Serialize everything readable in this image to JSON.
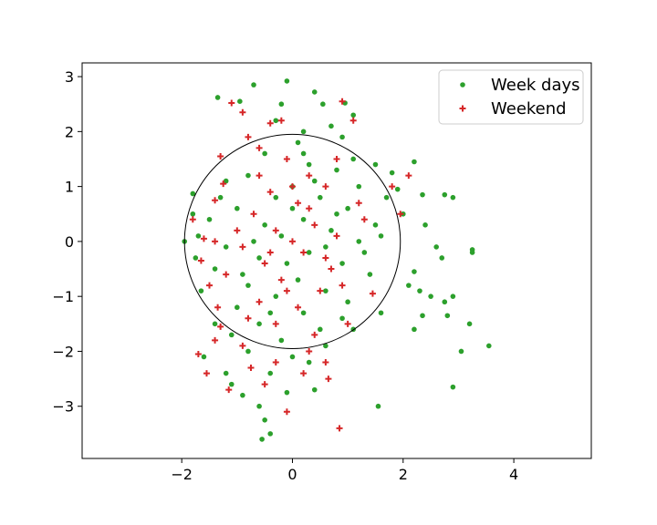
{
  "chart_data": {
    "type": "scatter",
    "title": "",
    "xlabel": "",
    "ylabel": "",
    "xlim": [
      -3.8,
      5.4
    ],
    "ylim": [
      -3.95,
      3.25
    ],
    "xticks": [
      -2,
      0,
      2,
      4
    ],
    "yticks": [
      -3,
      -2,
      -1,
      0,
      1,
      2,
      3
    ],
    "grid": false,
    "legend_placement": "top-right",
    "circle": {
      "center": [
        0,
        0
      ],
      "radius": 1.95,
      "color": "#000000"
    },
    "series": [
      {
        "name": "Week days",
        "marker": "dot",
        "color": "#2ca02c",
        "points": [
          [
            -0.1,
            2.92
          ],
          [
            0.4,
            2.72
          ],
          [
            -0.7,
            2.85
          ],
          [
            -1.35,
            2.62
          ],
          [
            -0.95,
            2.55
          ],
          [
            0.95,
            2.52
          ],
          [
            1.1,
            2.3
          ],
          [
            0.55,
            2.5
          ],
          [
            -1.8,
            0.87
          ],
          [
            -1.95,
            0.0
          ],
          [
            -1.8,
            0.5
          ],
          [
            -1.75,
            -0.3
          ],
          [
            -1.65,
            -0.9
          ],
          [
            -1.4,
            -1.5
          ],
          [
            -1.2,
            -2.4
          ],
          [
            -1.1,
            -2.6
          ],
          [
            -0.9,
            -2.8
          ],
          [
            -0.6,
            -3.0
          ],
          [
            -0.5,
            -3.25
          ],
          [
            -0.4,
            -3.5
          ],
          [
            -0.55,
            -3.6
          ],
          [
            -0.1,
            -2.75
          ],
          [
            0.0,
            -2.1
          ],
          [
            0.6,
            -1.9
          ],
          [
            1.1,
            -1.6
          ],
          [
            1.55,
            -3.0
          ],
          [
            2.2,
            1.45
          ],
          [
            2.35,
            0.85
          ],
          [
            2.75,
            0.85
          ],
          [
            2.9,
            0.8
          ],
          [
            2.4,
            0.3
          ],
          [
            2.6,
            -0.1
          ],
          [
            2.7,
            -0.3
          ],
          [
            3.25,
            -0.15
          ],
          [
            3.25,
            -0.2
          ],
          [
            2.2,
            -0.55
          ],
          [
            2.3,
            -0.9
          ],
          [
            2.5,
            -1.0
          ],
          [
            2.75,
            -1.1
          ],
          [
            2.9,
            -1.0
          ],
          [
            2.35,
            -1.35
          ],
          [
            2.2,
            -1.6
          ],
          [
            2.8,
            -1.35
          ],
          [
            3.2,
            -1.5
          ],
          [
            3.55,
            -1.9
          ],
          [
            3.05,
            -2.0
          ],
          [
            2.9,
            -2.65
          ],
          [
            1.8,
            1.25
          ],
          [
            1.5,
            1.4
          ],
          [
            1.9,
            0.95
          ],
          [
            2.0,
            0.5
          ],
          [
            2.1,
            -0.8
          ],
          [
            1.6,
            -1.3
          ],
          [
            0.2,
            2.0
          ],
          [
            0.7,
            2.1
          ],
          [
            -0.3,
            2.2
          ],
          [
            0.1,
            1.8
          ],
          [
            -0.5,
            1.6
          ],
          [
            0.3,
            1.4
          ],
          [
            0.8,
            1.3
          ],
          [
            -0.8,
            1.2
          ],
          [
            -1.2,
            1.1
          ],
          [
            1.2,
            1.0
          ],
          [
            0.0,
            1.0
          ],
          [
            -0.3,
            0.8
          ],
          [
            0.5,
            0.8
          ],
          [
            1.0,
            0.6
          ],
          [
            -1.0,
            0.6
          ],
          [
            -1.5,
            0.4
          ],
          [
            1.5,
            0.3
          ],
          [
            0.2,
            0.4
          ],
          [
            -0.5,
            0.3
          ],
          [
            0.7,
            0.2
          ],
          [
            -0.2,
            0.1
          ],
          [
            1.2,
            0.0
          ],
          [
            -1.2,
            -0.1
          ],
          [
            0.3,
            -0.2
          ],
          [
            -0.6,
            -0.3
          ],
          [
            0.9,
            -0.4
          ],
          [
            -1.4,
            -0.5
          ],
          [
            1.4,
            -0.6
          ],
          [
            0.1,
            -0.7
          ],
          [
            -0.8,
            -0.8
          ],
          [
            0.6,
            -0.9
          ],
          [
            -0.3,
            -1.0
          ],
          [
            1.0,
            -1.1
          ],
          [
            -1.0,
            -1.2
          ],
          [
            0.2,
            -1.3
          ],
          [
            -0.6,
            -1.5
          ],
          [
            0.5,
            -1.6
          ],
          [
            -0.2,
            -1.8
          ],
          [
            -0.8,
            -2.0
          ],
          [
            0.3,
            -2.2
          ],
          [
            -0.4,
            -2.4
          ],
          [
            0.9,
            -1.4
          ],
          [
            1.7,
            0.8
          ],
          [
            -1.7,
            0.1
          ],
          [
            0.4,
            1.1
          ],
          [
            -0.1,
            -0.4
          ],
          [
            0.8,
            0.5
          ],
          [
            -0.9,
            -0.6
          ],
          [
            1.3,
            -0.2
          ],
          [
            -1.3,
            0.8
          ],
          [
            0.0,
            0.6
          ],
          [
            -0.4,
            -1.3
          ],
          [
            0.6,
            -0.1
          ],
          [
            -0.7,
            0.0
          ],
          [
            0.2,
            1.6
          ],
          [
            1.1,
            1.5
          ],
          [
            -1.1,
            -1.7
          ],
          [
            0.4,
            -2.7
          ],
          [
            -1.6,
            -2.1
          ],
          [
            1.6,
            0.1
          ],
          [
            -0.2,
            2.5
          ],
          [
            0.9,
            1.9
          ]
        ]
      },
      {
        "name": "Weekend",
        "marker": "plus",
        "color": "#d62728",
        "points": [
          [
            -1.1,
            2.52
          ],
          [
            -0.4,
            2.15
          ],
          [
            -0.2,
            2.2
          ],
          [
            0.9,
            2.55
          ],
          [
            1.1,
            2.2
          ],
          [
            -0.9,
            2.35
          ],
          [
            -0.8,
            1.9
          ],
          [
            -0.6,
            1.7
          ],
          [
            -1.3,
            1.55
          ],
          [
            -1.25,
            1.05
          ],
          [
            -1.4,
            0.75
          ],
          [
            -1.8,
            0.4
          ],
          [
            -1.6,
            0.05
          ],
          [
            -1.65,
            -0.35
          ],
          [
            -1.5,
            -0.8
          ],
          [
            -1.35,
            -1.2
          ],
          [
            -1.3,
            -1.55
          ],
          [
            -1.4,
            -1.8
          ],
          [
            -1.7,
            -2.05
          ],
          [
            -1.55,
            -2.4
          ],
          [
            -1.15,
            -2.7
          ],
          [
            -0.75,
            -2.3
          ],
          [
            -0.5,
            -2.6
          ],
          [
            -0.1,
            -3.1
          ],
          [
            -0.3,
            -2.2
          ],
          [
            0.3,
            -2.0
          ],
          [
            0.65,
            -2.5
          ],
          [
            0.6,
            -2.2
          ],
          [
            0.85,
            -3.4
          ],
          [
            1.45,
            -0.95
          ],
          [
            1.95,
            0.5
          ],
          [
            2.1,
            1.2
          ],
          [
            1.8,
            1.0
          ],
          [
            -0.1,
            1.5
          ],
          [
            0.3,
            1.2
          ],
          [
            0.6,
            1.0
          ],
          [
            -0.4,
            0.9
          ],
          [
            0.1,
            0.7
          ],
          [
            -0.7,
            0.5
          ],
          [
            0.4,
            0.3
          ],
          [
            -0.3,
            0.2
          ],
          [
            0.8,
            0.1
          ],
          [
            -0.9,
            -0.1
          ],
          [
            0.2,
            -0.2
          ],
          [
            -0.5,
            -0.4
          ],
          [
            0.7,
            -0.5
          ],
          [
            -0.2,
            -0.7
          ],
          [
            0.5,
            -0.9
          ],
          [
            -0.6,
            -1.1
          ],
          [
            0.1,
            -1.2
          ],
          [
            -0.3,
            -1.5
          ],
          [
            0.4,
            -1.7
          ],
          [
            -0.8,
            -1.4
          ],
          [
            1.0,
            -1.5
          ],
          [
            -1.0,
            0.2
          ],
          [
            1.2,
            0.7
          ],
          [
            -1.2,
            -0.6
          ],
          [
            0.9,
            -0.8
          ],
          [
            0.0,
            0.0
          ],
          [
            -0.4,
            -0.2
          ],
          [
            0.3,
            0.6
          ],
          [
            -0.1,
            -0.9
          ],
          [
            0.6,
            -0.3
          ],
          [
            1.3,
            0.4
          ],
          [
            -1.4,
            0.0
          ],
          [
            0.0,
            1.0
          ],
          [
            -0.6,
            1.2
          ],
          [
            0.8,
            1.5
          ],
          [
            -0.9,
            -1.9
          ],
          [
            0.2,
            -2.4
          ]
        ]
      }
    ]
  }
}
